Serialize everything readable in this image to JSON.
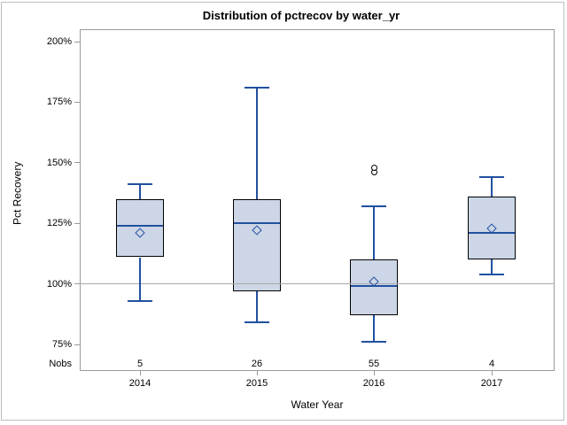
{
  "chart_data": {
    "type": "box",
    "title": "Distribution of pctrecov by water_yr",
    "xlabel": "Water Year",
    "ylabel": "Pct Recovery",
    "nobs_label": "Nobs",
    "y_axis": {
      "tick_labels": [
        "200%",
        "175%",
        "150%",
        "125%",
        "100%",
        "75%"
      ],
      "tick_values": [
        200,
        175,
        150,
        125,
        100,
        75
      ],
      "range": [
        75,
        200
      ],
      "unit": "%"
    },
    "reference_line": 100,
    "categories": [
      "2014",
      "2015",
      "2016",
      "2017"
    ],
    "series": [
      {
        "category": "2014",
        "nobs": "5",
        "whisker_low": 93,
        "q1": 111,
        "median": 124,
        "mean": 121,
        "q3": 135,
        "whisker_high": 141,
        "outliers": []
      },
      {
        "category": "2015",
        "nobs": "26",
        "whisker_low": 84,
        "q1": 97,
        "median": 125,
        "mean": 122,
        "q3": 135,
        "whisker_high": 181,
        "outliers": []
      },
      {
        "category": "2016",
        "nobs": "55",
        "whisker_low": 76,
        "q1": 87,
        "median": 99,
        "mean": 101,
        "q3": 110,
        "whisker_high": 132,
        "outliers": [
          146,
          148
        ]
      },
      {
        "category": "2017",
        "nobs": "4",
        "whisker_low": 104,
        "q1": 110,
        "median": 121,
        "mean": 123,
        "q3": 136,
        "whisker_high": 144,
        "outliers": []
      }
    ],
    "legend": "none",
    "grid": "off",
    "colors": {
      "box_fill": "#ccd6e6",
      "box_border": "#000000",
      "line_blue": "#2150a0",
      "frame_gray": "#9a9a9a",
      "reference_gray": "#a9a9a9",
      "outer_border": "#bdbdbd",
      "text": "#000000"
    }
  }
}
